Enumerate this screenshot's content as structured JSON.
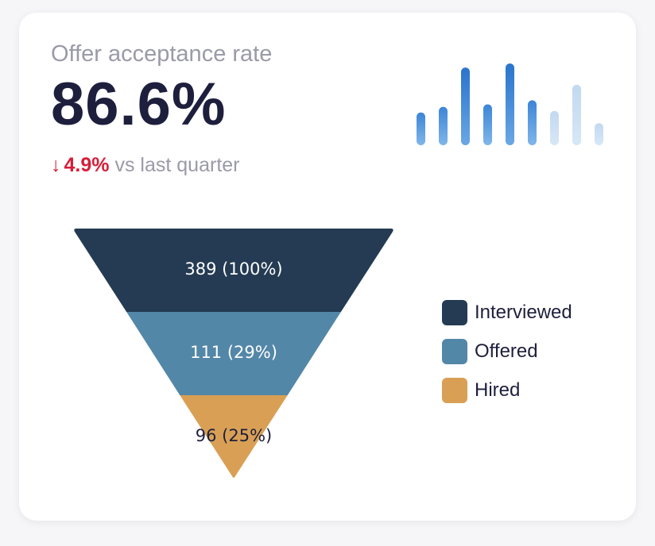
{
  "widget": {
    "title": "Offer acceptance rate",
    "value": "86.6%",
    "delta": {
      "arrow_icon": "arrow-down-icon",
      "arrow_glyph": "↓",
      "value": "4.9%",
      "caption": "vs last quarter",
      "color": "#d51e3a"
    }
  },
  "colors": {
    "interviewed": "#243b53",
    "offered": "#5387a8",
    "hired": "#d9a055",
    "bar_dark": "#2f7ad0",
    "bar_light": "#c9ddf0"
  },
  "chart_data": [
    {
      "type": "bar",
      "values": [
        40,
        47,
        95,
        50,
        100,
        55,
        42,
        74,
        27
      ],
      "tones": [
        "mid",
        "mid",
        "dark",
        "mid",
        "dark",
        "mid",
        "light",
        "light",
        "light"
      ],
      "ylim": [
        0,
        100
      ]
    },
    {
      "type": "funnel",
      "categories": [
        "Interviewed",
        "Offered",
        "Hired"
      ],
      "values": [
        389,
        111,
        96
      ],
      "labels": [
        "389 (100%)",
        "111 (29%)",
        "96 (25%)"
      ]
    }
  ],
  "legend": [
    {
      "label": "Interviewed",
      "color": "#243b53"
    },
    {
      "label": "Offered",
      "color": "#5387a8"
    },
    {
      "label": "Hired",
      "color": "#d9a055"
    }
  ]
}
